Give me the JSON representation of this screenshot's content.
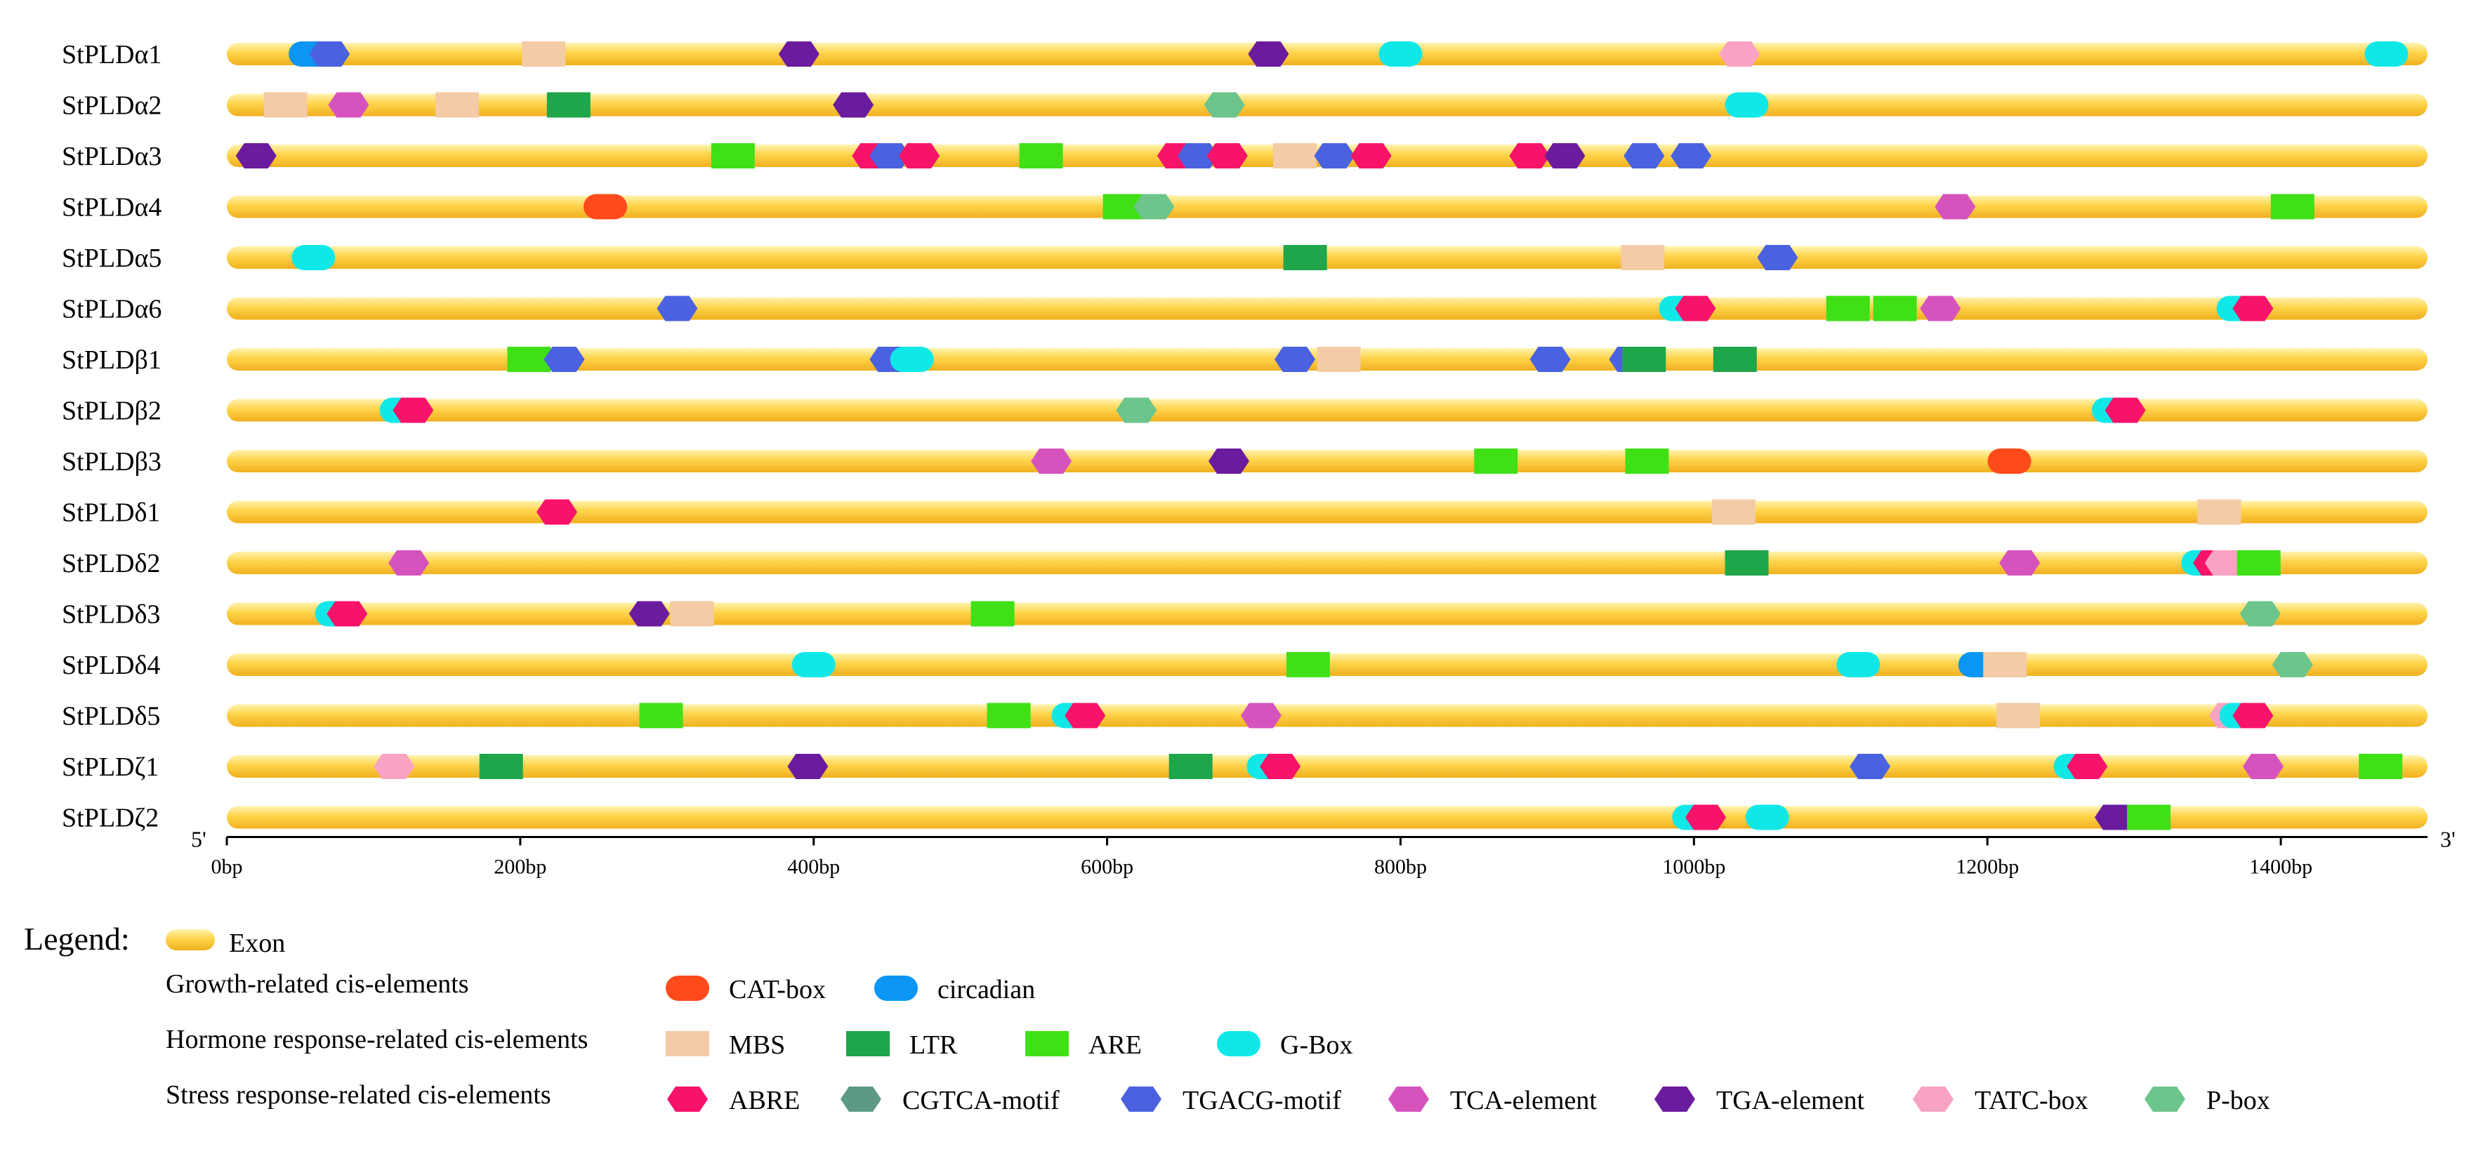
{
  "genes": [
    {
      "name": "StPLDα1",
      "elements": [
        {
          "type": "circadian",
          "pos": 57
        },
        {
          "type": "TGACG-motif",
          "pos": 70
        },
        {
          "type": "MBS",
          "pos": 216
        },
        {
          "type": "TGA-element",
          "pos": 390
        },
        {
          "type": "TGA-element",
          "pos": 710
        },
        {
          "type": "G-Box",
          "pos": 800
        },
        {
          "type": "TATC-box",
          "pos": 1031
        },
        {
          "type": "G-Box",
          "pos": 1472
        }
      ]
    },
    {
      "name": "StPLDα2",
      "elements": [
        {
          "type": "MBS",
          "pos": 40
        },
        {
          "type": "TCA-element",
          "pos": 83
        },
        {
          "type": "MBS",
          "pos": 157
        },
        {
          "type": "LTR",
          "pos": 233
        },
        {
          "type": "TGA-element",
          "pos": 427
        },
        {
          "type": "P-box",
          "pos": 680
        },
        {
          "type": "G-Box",
          "pos": 1036
        }
      ]
    },
    {
      "name": "StPLDα3",
      "elements": [
        {
          "type": "TGA-element",
          "pos": 20
        },
        {
          "type": "ARE",
          "pos": 345
        },
        {
          "type": "ABRE",
          "pos": 440
        },
        {
          "type": "TGACG-motif",
          "pos": 452
        },
        {
          "type": "ABRE",
          "pos": 472
        },
        {
          "type": "ARE",
          "pos": 555
        },
        {
          "type": "ABRE",
          "pos": 648
        },
        {
          "type": "TGACG-motif",
          "pos": 662
        },
        {
          "type": "ABRE",
          "pos": 682
        },
        {
          "type": "MBS",
          "pos": 728
        },
        {
          "type": "TGACG-motif",
          "pos": 755
        },
        {
          "type": "ABRE",
          "pos": 780
        },
        {
          "type": "ABRE",
          "pos": 888
        },
        {
          "type": "TGA-element",
          "pos": 912
        },
        {
          "type": "TGACG-motif",
          "pos": 966
        },
        {
          "type": "TGACG-motif",
          "pos": 998
        }
      ]
    },
    {
      "name": "StPLDα4",
      "elements": [
        {
          "type": "CAT-box",
          "pos": 258
        },
        {
          "type": "ARE",
          "pos": 612
        },
        {
          "type": "P-box",
          "pos": 632
        },
        {
          "type": "TCA-element",
          "pos": 1178
        },
        {
          "type": "ARE",
          "pos": 1408
        }
      ]
    },
    {
      "name": "StPLDα5",
      "elements": [
        {
          "type": "G-Box",
          "pos": 59
        },
        {
          "type": "LTR",
          "pos": 735
        },
        {
          "type": "MBS",
          "pos": 965
        },
        {
          "type": "TGACG-motif",
          "pos": 1057
        }
      ]
    },
    {
      "name": "StPLDα6",
      "elements": [
        {
          "type": "TGACG-motif",
          "pos": 307
        },
        {
          "type": "G-Box",
          "pos": 991
        },
        {
          "type": "ABRE",
          "pos": 1001
        },
        {
          "type": "ARE",
          "pos": 1105
        },
        {
          "type": "ARE",
          "pos": 1137
        },
        {
          "type": "TCA-element",
          "pos": 1168
        },
        {
          "type": "G-Box",
          "pos": 1371
        },
        {
          "type": "ABRE",
          "pos": 1381
        }
      ]
    },
    {
      "name": "StPLDβ1",
      "elements": [
        {
          "type": "ARE",
          "pos": 206
        },
        {
          "type": "TGACG-motif",
          "pos": 230
        },
        {
          "type": "TGACG-motif",
          "pos": 452
        },
        {
          "type": "G-Box",
          "pos": 467
        },
        {
          "type": "TGACG-motif",
          "pos": 728
        },
        {
          "type": "MBS",
          "pos": 758
        },
        {
          "type": "TGACG-motif",
          "pos": 902
        },
        {
          "type": "TGACG-motif",
          "pos": 956
        },
        {
          "type": "LTR",
          "pos": 966
        },
        {
          "type": "LTR",
          "pos": 1028
        }
      ]
    },
    {
      "name": "StPLDβ2",
      "elements": [
        {
          "type": "G-Box",
          "pos": 119
        },
        {
          "type": "ABRE",
          "pos": 127
        },
        {
          "type": "P-box",
          "pos": 620
        },
        {
          "type": "G-Box",
          "pos": 1286
        },
        {
          "type": "ABRE",
          "pos": 1294
        }
      ]
    },
    {
      "name": "StPLDβ3",
      "elements": [
        {
          "type": "TCA-element",
          "pos": 562
        },
        {
          "type": "TGA-element",
          "pos": 683
        },
        {
          "type": "ARE",
          "pos": 865
        },
        {
          "type": "ARE",
          "pos": 968
        },
        {
          "type": "CAT-box",
          "pos": 1215
        }
      ]
    },
    {
      "name": "StPLDδ1",
      "elements": [
        {
          "type": "ABRE",
          "pos": 225
        },
        {
          "type": "MBS",
          "pos": 1027
        },
        {
          "type": "MBS",
          "pos": 1358
        }
      ]
    },
    {
      "name": "StPLDδ2",
      "elements": [
        {
          "type": "TCA-element",
          "pos": 124
        },
        {
          "type": "LTR",
          "pos": 1036
        },
        {
          "type": "TCA-element",
          "pos": 1222
        },
        {
          "type": "G-Box",
          "pos": 1347
        },
        {
          "type": "ABRE",
          "pos": 1354
        },
        {
          "type": "TATC-box",
          "pos": 1362
        },
        {
          "type": "ARE",
          "pos": 1385
        }
      ]
    },
    {
      "name": "StPLDδ3",
      "elements": [
        {
          "type": "G-Box",
          "pos": 75
        },
        {
          "type": "ABRE",
          "pos": 82
        },
        {
          "type": "TGA-element",
          "pos": 288
        },
        {
          "type": "MBS",
          "pos": 317
        },
        {
          "type": "ARE",
          "pos": 522
        },
        {
          "type": "P-box",
          "pos": 1386
        }
      ]
    },
    {
      "name": "StPLDδ4",
      "elements": [
        {
          "type": "G-Box",
          "pos": 400
        },
        {
          "type": "ARE",
          "pos": 737
        },
        {
          "type": "G-Box",
          "pos": 1112
        },
        {
          "type": "circadian",
          "pos": 1195
        },
        {
          "type": "MBS",
          "pos": 1212
        },
        {
          "type": "P-box",
          "pos": 1408
        }
      ]
    },
    {
      "name": "StPLDδ5",
      "elements": [
        {
          "type": "ARE",
          "pos": 296
        },
        {
          "type": "ARE",
          "pos": 533
        },
        {
          "type": "G-Box",
          "pos": 577
        },
        {
          "type": "ABRE",
          "pos": 585
        },
        {
          "type": "TCA-element",
          "pos": 705
        },
        {
          "type": "MBS",
          "pos": 1221
        },
        {
          "type": "TATC-box",
          "pos": 1365
        },
        {
          "type": "G-Box",
          "pos": 1373
        },
        {
          "type": "ABRE",
          "pos": 1381
        }
      ]
    },
    {
      "name": "StPLDζ1",
      "elements": [
        {
          "type": "TATC-box",
          "pos": 114
        },
        {
          "type": "LTR",
          "pos": 187
        },
        {
          "type": "TGA-element",
          "pos": 396
        },
        {
          "type": "LTR",
          "pos": 657
        },
        {
          "type": "G-Box",
          "pos": 710
        },
        {
          "type": "ABRE",
          "pos": 718
        },
        {
          "type": "TGACG-motif",
          "pos": 1120
        },
        {
          "type": "G-Box",
          "pos": 1260
        },
        {
          "type": "ABRE",
          "pos": 1268
        },
        {
          "type": "TCA-element",
          "pos": 1388
        },
        {
          "type": "ARE",
          "pos": 1468
        }
      ]
    },
    {
      "name": "StPLDζ2",
      "elements": [
        {
          "type": "G-Box",
          "pos": 1000
        },
        {
          "type": "ABRE",
          "pos": 1008
        },
        {
          "type": "G-Box",
          "pos": 1050
        },
        {
          "type": "TGA-element",
          "pos": 1287
        },
        {
          "type": "ARE",
          "pos": 1310
        }
      ]
    }
  ],
  "axis": {
    "max_bp": 1500,
    "ticks": [
      {
        "value": 0,
        "label": "0bp"
      },
      {
        "value": 200,
        "label": "200bp"
      },
      {
        "value": 400,
        "label": "400bp"
      },
      {
        "value": 600,
        "label": "600bp"
      },
      {
        "value": 800,
        "label": "800bp"
      },
      {
        "value": 1000,
        "label": "1000bp"
      },
      {
        "value": 1200,
        "label": "1200bp"
      },
      {
        "value": 1400,
        "label": "1400bp"
      }
    ],
    "left_end_label": "5'",
    "right_end_label": "3'"
  },
  "legend": {
    "title": "Legend:",
    "exon_label": "Exon",
    "groups": [
      {
        "label": "Growth-related cis-elements",
        "items": [
          "CAT-box",
          "circadian"
        ]
      },
      {
        "label": "Hormone response-related cis-elements",
        "items": [
          "MBS",
          "LTR",
          "ARE",
          "G-Box"
        ]
      },
      {
        "label": "Stress response-related cis-elements",
        "items": [
          "ABRE",
          "CGTCA-motif",
          "TGACG-motif",
          "TCA-element",
          "TGA-element",
          "TATC-box",
          "P-box"
        ]
      }
    ]
  },
  "element_styles": {
    "CAT-box": {
      "shape": "pill",
      "color": "#FF4A1C"
    },
    "circadian": {
      "shape": "pill",
      "color": "#0A96F2"
    },
    "G-Box": {
      "shape": "pill",
      "color": "#10E8E8"
    },
    "MBS": {
      "shape": "rect",
      "color": "#F3CBA6"
    },
    "LTR": {
      "shape": "rect",
      "color": "#1FA64A"
    },
    "ARE": {
      "shape": "rect",
      "color": "#3FE016"
    },
    "ABRE": {
      "shape": "hex",
      "color": "#F7126A"
    },
    "CGTCA-motif": {
      "shape": "hex",
      "color": "#5D9A86"
    },
    "TGACG-motif": {
      "shape": "hex",
      "color": "#4A62E0"
    },
    "TCA-element": {
      "shape": "hex",
      "color": "#D653BD"
    },
    "TGA-element": {
      "shape": "hex",
      "color": "#6B1B9E"
    },
    "TATC-box": {
      "shape": "hex",
      "color": "#F9A3C4"
    },
    "P-box": {
      "shape": "hex",
      "color": "#6CC58A"
    }
  },
  "colors": {
    "exon_top": "#FFF3B0",
    "exon_mid": "#FFD44A",
    "exon_bottom": "#F0B020"
  }
}
